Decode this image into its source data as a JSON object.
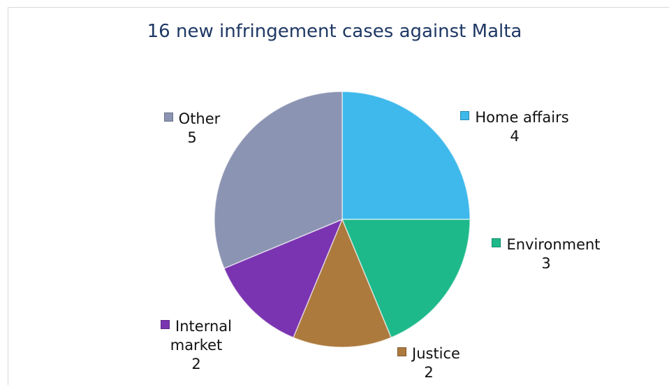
{
  "chart_data": {
    "type": "pie",
    "title": "16 new infringement cases against Malta",
    "categories": [
      "Home affairs",
      "Environment",
      "Justice",
      "Internal market",
      "Other"
    ],
    "values": [
      4,
      3,
      2,
      2,
      5
    ],
    "colors": [
      "#3fb9eb",
      "#1db98b",
      "#ad7a3e",
      "#7b34b1",
      "#8c94b3"
    ]
  }
}
